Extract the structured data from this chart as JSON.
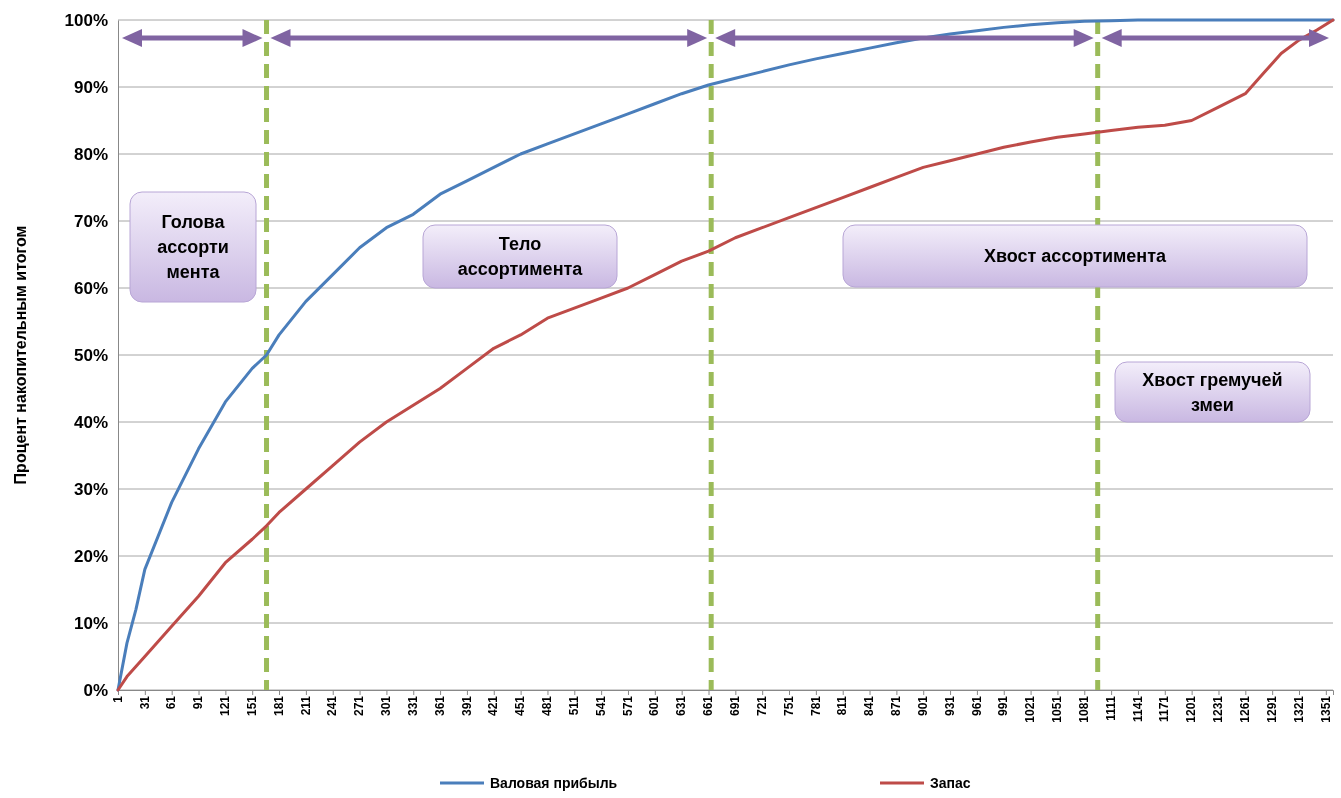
{
  "chart_data": {
    "type": "line",
    "ylabel": "Процент накопительным итогом",
    "x": [
      1,
      11,
      21,
      31,
      61,
      91,
      121,
      151,
      167,
      181,
      211,
      241,
      271,
      301,
      331,
      361,
      391,
      421,
      451,
      481,
      511,
      541,
      571,
      601,
      631,
      661,
      691,
      721,
      751,
      781,
      811,
      841,
      871,
      901,
      931,
      961,
      991,
      1021,
      1051,
      1081,
      1111,
      1141,
      1171,
      1201,
      1231,
      1261,
      1281,
      1301,
      1321,
      1341,
      1359
    ],
    "series": [
      {
        "name": "Валовая прибыль",
        "color": "#4a7ebb",
        "values": [
          0,
          7,
          12,
          18,
          28,
          36,
          43,
          48,
          50,
          53,
          58,
          62,
          66,
          69,
          71,
          74,
          76,
          78,
          80,
          81.5,
          83,
          84.5,
          86,
          87.5,
          89,
          90.3,
          91.3,
          92.3,
          93.3,
          94.2,
          95,
          95.8,
          96.6,
          97.3,
          97.9,
          98.4,
          98.9,
          99.3,
          99.6,
          99.8,
          99.9,
          100,
          100,
          100,
          100,
          100,
          100,
          100,
          100,
          100,
          100
        ]
      },
      {
        "name": "Запас",
        "color": "#be4b48",
        "values": [
          0,
          2,
          3.5,
          5,
          9.5,
          14,
          19,
          22.5,
          24.5,
          26.5,
          30,
          33.5,
          37,
          40,
          42.5,
          45,
          48,
          51,
          53,
          55.5,
          57,
          58.5,
          60,
          62,
          64,
          65.5,
          67.5,
          69,
          70.5,
          72,
          73.5,
          75,
          76.5,
          78,
          79,
          80,
          81,
          81.8,
          82.5,
          83,
          83.5,
          84,
          84.3,
          85,
          87,
          89,
          92,
          95,
          97,
          98.5,
          100
        ]
      }
    ],
    "xlim": [
      1,
      1359
    ],
    "xticks": [
      1,
      31,
      61,
      91,
      121,
      151,
      181,
      211,
      241,
      271,
      301,
      331,
      361,
      391,
      421,
      451,
      481,
      511,
      541,
      571,
      601,
      631,
      661,
      691,
      721,
      751,
      781,
      811,
      841,
      871,
      901,
      931,
      961,
      991,
      1021,
      1051,
      1081,
      1111,
      1141,
      1171,
      1201,
      1231,
      1261,
      1291,
      1321,
      1351
    ],
    "ylim": [
      0,
      100
    ],
    "yticks": [
      {
        "value": 0,
        "label": "0%"
      },
      {
        "value": 10,
        "label": "10%"
      },
      {
        "value": 20,
        "label": "20%"
      },
      {
        "value": 30,
        "label": "30%"
      },
      {
        "value": 40,
        "label": "40%"
      },
      {
        "value": 50,
        "label": "50%"
      },
      {
        "value": 60,
        "label": "60%"
      },
      {
        "value": 70,
        "label": "70%"
      },
      {
        "value": 80,
        "label": "80%"
      },
      {
        "value": 90,
        "label": "90%"
      },
      {
        "value": 100,
        "label": "100%"
      }
    ],
    "grid": "y",
    "legend": "bottom",
    "marker": "none",
    "line_style": "solid",
    "ref_lines": [
      {
        "axis": "x",
        "value": 167,
        "color": "#9bbb59",
        "line_style": "dashed"
      },
      {
        "axis": "x",
        "value": 664,
        "color": "#9bbb59",
        "line_style": "dashed"
      },
      {
        "axis": "x",
        "value": 1096,
        "color": "#9bbb59",
        "line_style": "dashed"
      }
    ],
    "annotations": [
      "Голова ассорти мента",
      "Тело ассортимента",
      "Хвост ассортимента",
      "Хвост гремучей змеи"
    ]
  }
}
